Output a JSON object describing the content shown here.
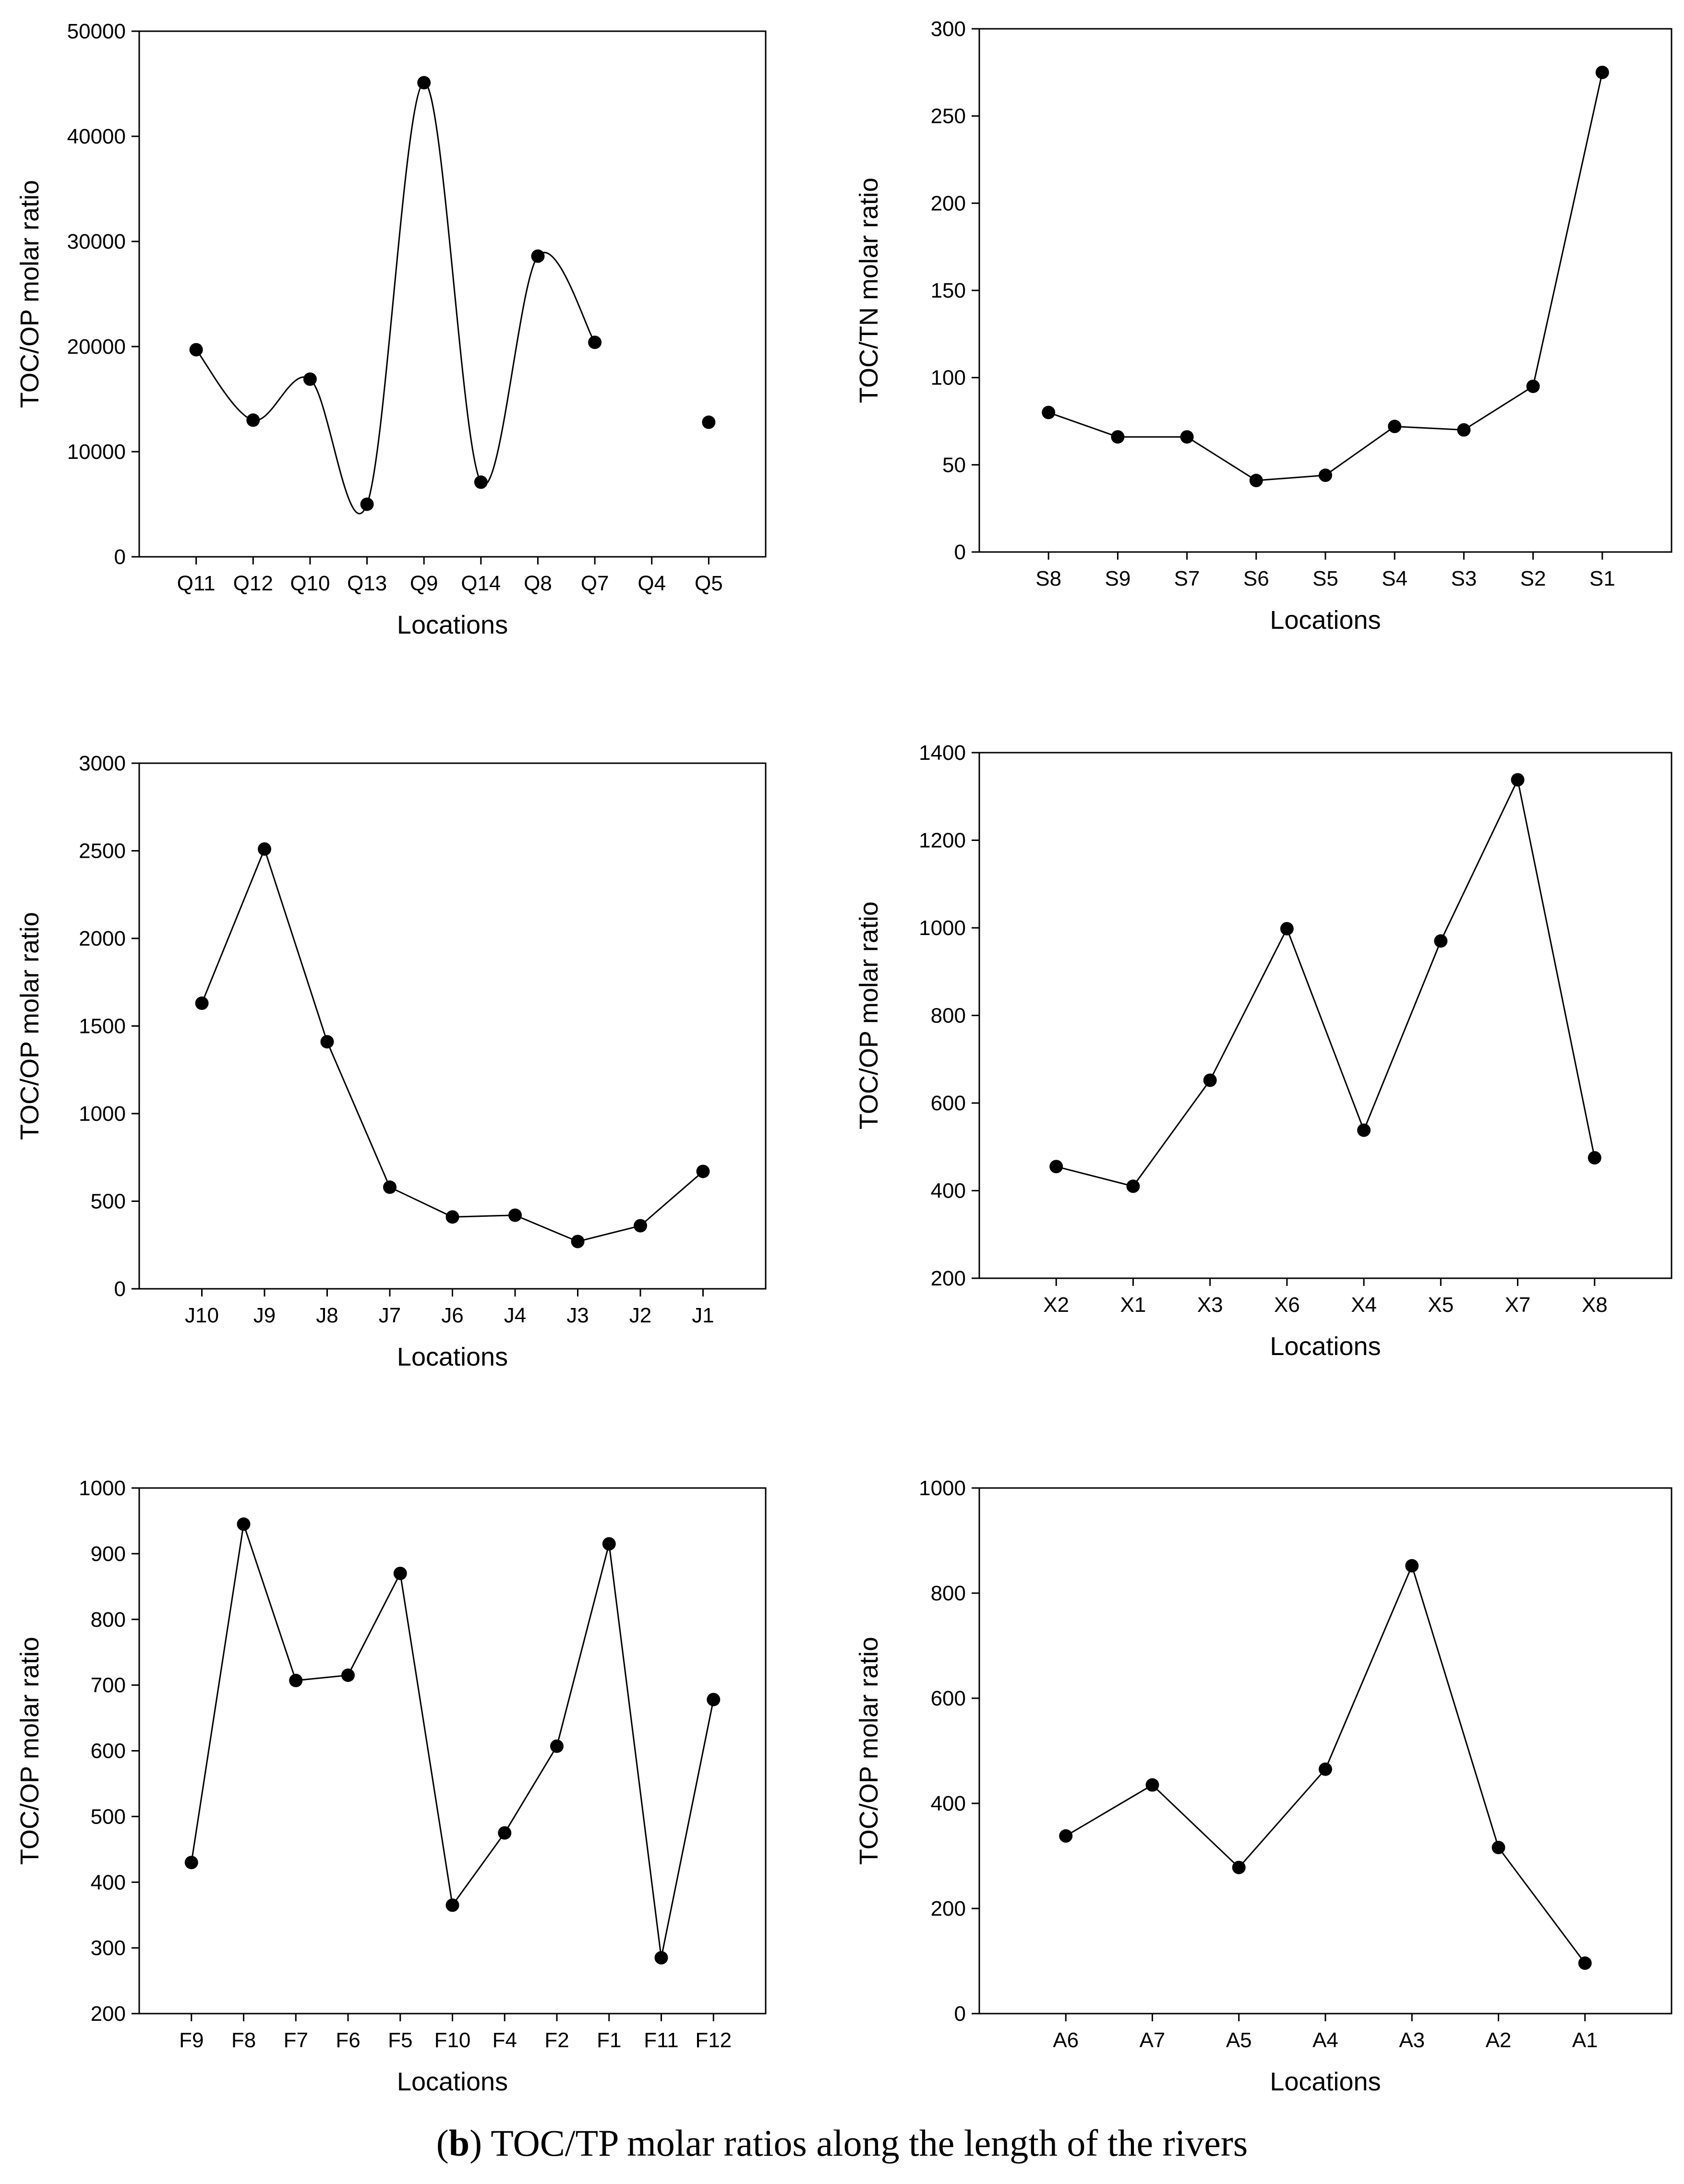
{
  "figure": {
    "caption_letter": "b",
    "caption_text": "TOC/TP molar ratios along the length of the rivers"
  },
  "chart_data": [
    {
      "type": "line",
      "smooth": true,
      "title": "",
      "xlabel": "Locations",
      "ylabel": "TOC/OP molar ratio",
      "ylim": [
        0,
        50000
      ],
      "yticks": [
        0,
        10000,
        20000,
        30000,
        40000,
        50000
      ],
      "categories": [
        "Q11",
        "Q12",
        "Q10",
        "Q13",
        "Q9",
        "Q14",
        "Q8",
        "Q7",
        "Q4",
        "Q5"
      ],
      "values": [
        19700,
        13000,
        16900,
        5000,
        45100,
        7100,
        28600,
        20400,
        null,
        12800
      ],
      "connected_until_index": 7
    },
    {
      "type": "line",
      "title": "",
      "xlabel": "Locations",
      "ylabel": "TOC/TN molar ratio",
      "ylim": [
        0,
        300
      ],
      "yticks": [
        0,
        50,
        100,
        150,
        200,
        250,
        300
      ],
      "categories": [
        "S8",
        "S9",
        "S7",
        "S6",
        "S5",
        "S4",
        "S3",
        "S2",
        "S1"
      ],
      "values": [
        80,
        66,
        66,
        41,
        44,
        72,
        70,
        95,
        275
      ]
    },
    {
      "type": "line",
      "title": "",
      "xlabel": "Locations",
      "ylabel": "TOC/OP molar ratio",
      "ylim": [
        0,
        3000
      ],
      "yticks": [
        0,
        500,
        1000,
        1500,
        2000,
        2500,
        3000
      ],
      "categories": [
        "J10",
        "J9",
        "J8",
        "J7",
        "J6",
        "J4",
        "J3",
        "J2",
        "J1"
      ],
      "values": [
        1630,
        2510,
        1410,
        580,
        410,
        420,
        270,
        360,
        670
      ]
    },
    {
      "type": "line",
      "title": "",
      "xlabel": "Locations",
      "ylabel": "TOC/OP molar ratio",
      "ylim": [
        200,
        1400
      ],
      "yticks": [
        200,
        400,
        600,
        800,
        1000,
        1200,
        1400
      ],
      "categories": [
        "X2",
        "X1",
        "X3",
        "X6",
        "X4",
        "X5",
        "X7",
        "X8"
      ],
      "values": [
        455,
        410,
        652,
        998,
        538,
        970,
        1338,
        475
      ]
    },
    {
      "type": "line",
      "title": "",
      "xlabel": "Locations",
      "ylabel": "TOC/OP molar ratio",
      "ylim": [
        200,
        1000
      ],
      "yticks": [
        200,
        300,
        400,
        500,
        600,
        700,
        800,
        900,
        1000
      ],
      "categories": [
        "F9",
        "F8",
        "F7",
        "F6",
        "F5",
        "F10",
        "F4",
        "F2",
        "F1",
        "F11",
        "F12"
      ],
      "values": [
        430,
        945,
        707,
        715,
        870,
        365,
        475,
        607,
        915,
        285,
        678
      ]
    },
    {
      "type": "line",
      "title": "",
      "xlabel": "Locations",
      "ylabel": "TOC/OP molar ratio",
      "ylim": [
        0,
        1000
      ],
      "yticks": [
        0,
        200,
        400,
        600,
        800,
        1000
      ],
      "categories": [
        "A6",
        "A7",
        "A5",
        "A4",
        "A3",
        "A2",
        "A1"
      ],
      "values": [
        338,
        435,
        278,
        465,
        852,
        316,
        96
      ]
    }
  ]
}
